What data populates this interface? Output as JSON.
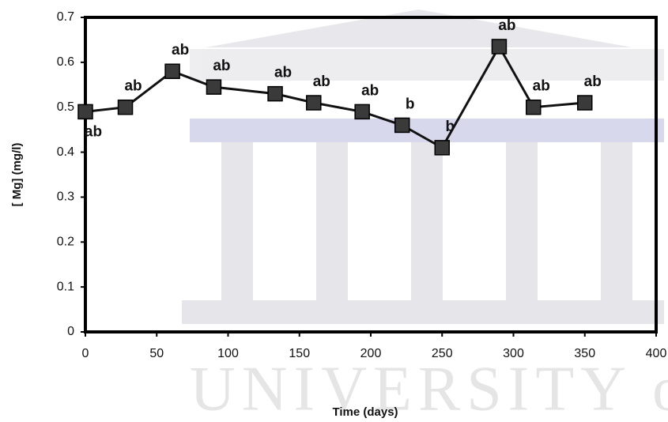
{
  "chart_data": {
    "type": "line",
    "y_label": "[ Mg] (mg/l)",
    "x_label": "Time (days)",
    "watermark_text": "UNIVERSITY of",
    "x": [
      0,
      28,
      61,
      90,
      133,
      160,
      194,
      222,
      250,
      290,
      314,
      350
    ],
    "series": [
      {
        "name": "Mg",
        "color": "#111111",
        "marker_color": "#3a3a3a",
        "values": [
          0.49,
          0.5,
          0.58,
          0.545,
          0.53,
          0.51,
          0.49,
          0.46,
          0.41,
          0.635,
          0.5,
          0.51
        ],
        "point_labels": [
          "ab",
          "ab",
          "ab",
          "ab",
          "ab",
          "ab",
          "ab",
          "b",
          "b",
          "ab",
          "ab",
          "ab"
        ]
      }
    ],
    "xlim": [
      0,
      400
    ],
    "xticks": [
      0,
      50,
      100,
      150,
      200,
      250,
      300,
      350,
      400
    ],
    "ylim": [
      0,
      0.7
    ],
    "yticks": [
      0,
      0.1,
      0.2,
      0.3,
      0.4,
      0.5,
      0.6,
      0.7
    ]
  }
}
